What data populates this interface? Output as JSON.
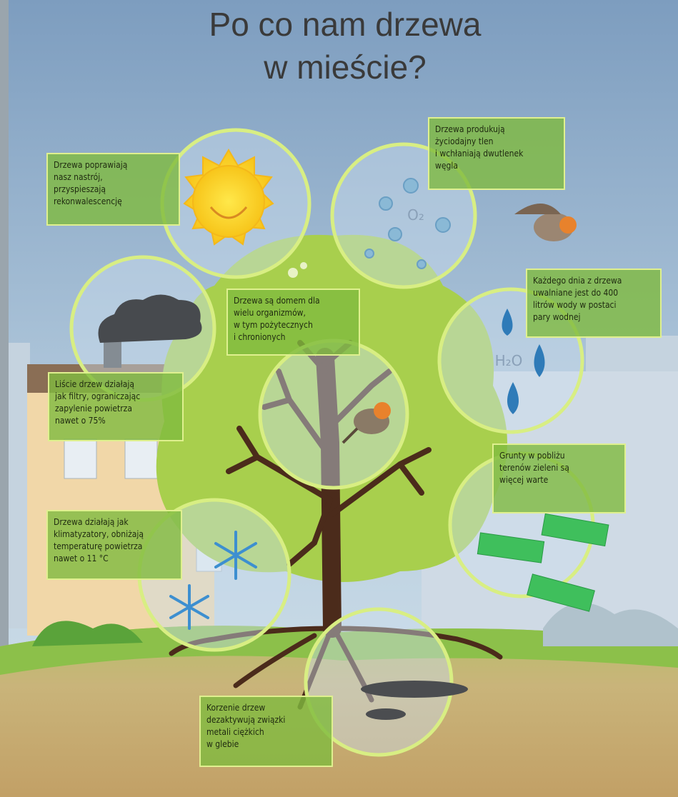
{
  "header": {
    "title_lines": [
      "Po co nam drzewa",
      "w mieście?"
    ]
  },
  "callouts": [
    {
      "lines": [
        "Drzewa poprawiają",
        "nasz nastrój,",
        "przyspieszają",
        "rekonwalescencję"
      ]
    },
    {
      "lines": [
        "Drzewa produkują",
        "życiodajny tlen",
        "i wchłaniają dwutlenek",
        "węgla"
      ]
    },
    {
      "lines": [
        "Drzewa są domem dla",
        "wielu organizmów,",
        "w tym pożytecznych",
        "i chronionych"
      ]
    },
    {
      "lines": [
        "Każdego dnia z drzewa",
        "uwalniane jest do 400",
        "litrów wody w postaci",
        "pary wodnej"
      ]
    },
    {
      "lines": [
        "Liście drzew działają",
        "jak filtry, ograniczając",
        "zapylenie powietrza",
        "nawet o 75%"
      ]
    },
    {
      "lines": [
        "Grunty w pobliżu",
        "terenów zieleni są",
        "więcej warte"
      ]
    },
    {
      "lines": [
        "Drzewa działają jak",
        "klimatyzatory, obniżają",
        "temperaturę powietrza",
        "nawet o 11 °C"
      ]
    },
    {
      "lines": [
        "Korzenie drzew",
        "dezaktywują związki",
        "metali ciężkich",
        "w glebie"
      ]
    }
  ],
  "labels": {
    "oxygen": "O₂",
    "water": "H₂O"
  }
}
